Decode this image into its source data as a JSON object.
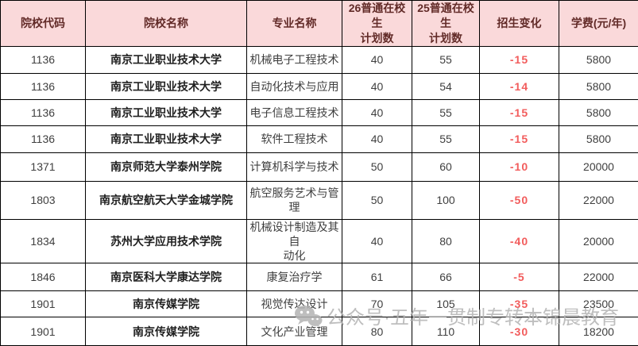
{
  "colors": {
    "header_background": "#FAD9DA",
    "header_text": "#622B28",
    "body_text": "#3F3F3F",
    "college_text": "#1F1F1F",
    "change_negative": "#F25C5C",
    "border": "#000000",
    "watermark": "#B3B3B3"
  },
  "watermark": {
    "icon": "wechat-icon",
    "text": "公众号·五年一贯制专转本锦晨教育"
  },
  "chart_data": {
    "type": "table",
    "headers": {
      "code": "院校代码",
      "college": "院校名称",
      "major": "专业名称",
      "plan26": [
        "26普通在校生",
        "计划数"
      ],
      "plan25": [
        "25普通在校生",
        "计划数"
      ],
      "change": "招生变化",
      "tuition": "学费(元/年)"
    },
    "rows": [
      {
        "code": "1136",
        "college": "南京工业职业技术大学",
        "major": "机械电子工程技术",
        "plan26": "40",
        "plan25": "55",
        "change": "-15",
        "tuition": "5800"
      },
      {
        "code": "1136",
        "college": "南京工业职业技术大学",
        "major": "自动化技术与应用",
        "plan26": "40",
        "plan25": "54",
        "change": "-14",
        "tuition": "5800"
      },
      {
        "code": "1136",
        "college": "南京工业职业技术大学",
        "major": "电子信息工程技术",
        "plan26": "40",
        "plan25": "55",
        "change": "-15",
        "tuition": "5800"
      },
      {
        "code": "1136",
        "college": "南京工业职业技术大学",
        "major": "软件工程技术",
        "plan26": "40",
        "plan25": "55",
        "change": "-15",
        "tuition": "5800"
      },
      {
        "code": "1371",
        "college": "南京师范大学泰州学院",
        "major": "计算机科学与技术",
        "plan26": "50",
        "plan25": "60",
        "change": "-10",
        "tuition": "20000"
      },
      {
        "code": "1803",
        "college": "南京航空航天大学金城学院",
        "major": "航空服务艺术与管理",
        "plan26": "50",
        "plan25": "100",
        "change": "-50",
        "tuition": "22000"
      },
      {
        "code": "1834",
        "college": "苏州大学应用技术学院",
        "major": [
          "机械设计制造及其自",
          "动化"
        ],
        "plan26": "40",
        "plan25": "80",
        "change": "-40",
        "tuition": "20000"
      },
      {
        "code": "1846",
        "college": "南京医科大学康达学院",
        "major": "康复治疗学",
        "plan26": "61",
        "plan25": "66",
        "change": "-5",
        "tuition": "22000"
      },
      {
        "code": "1901",
        "college": "南京传媒学院",
        "major": "视觉传达设计",
        "plan26": "70",
        "plan25": "105",
        "change": "-35",
        "tuition": "23500"
      },
      {
        "code": "1901",
        "college": "南京传媒学院",
        "major": "文化产业管理",
        "plan26": "80",
        "plan25": "110",
        "change": "-30",
        "tuition": "18200"
      }
    ]
  }
}
